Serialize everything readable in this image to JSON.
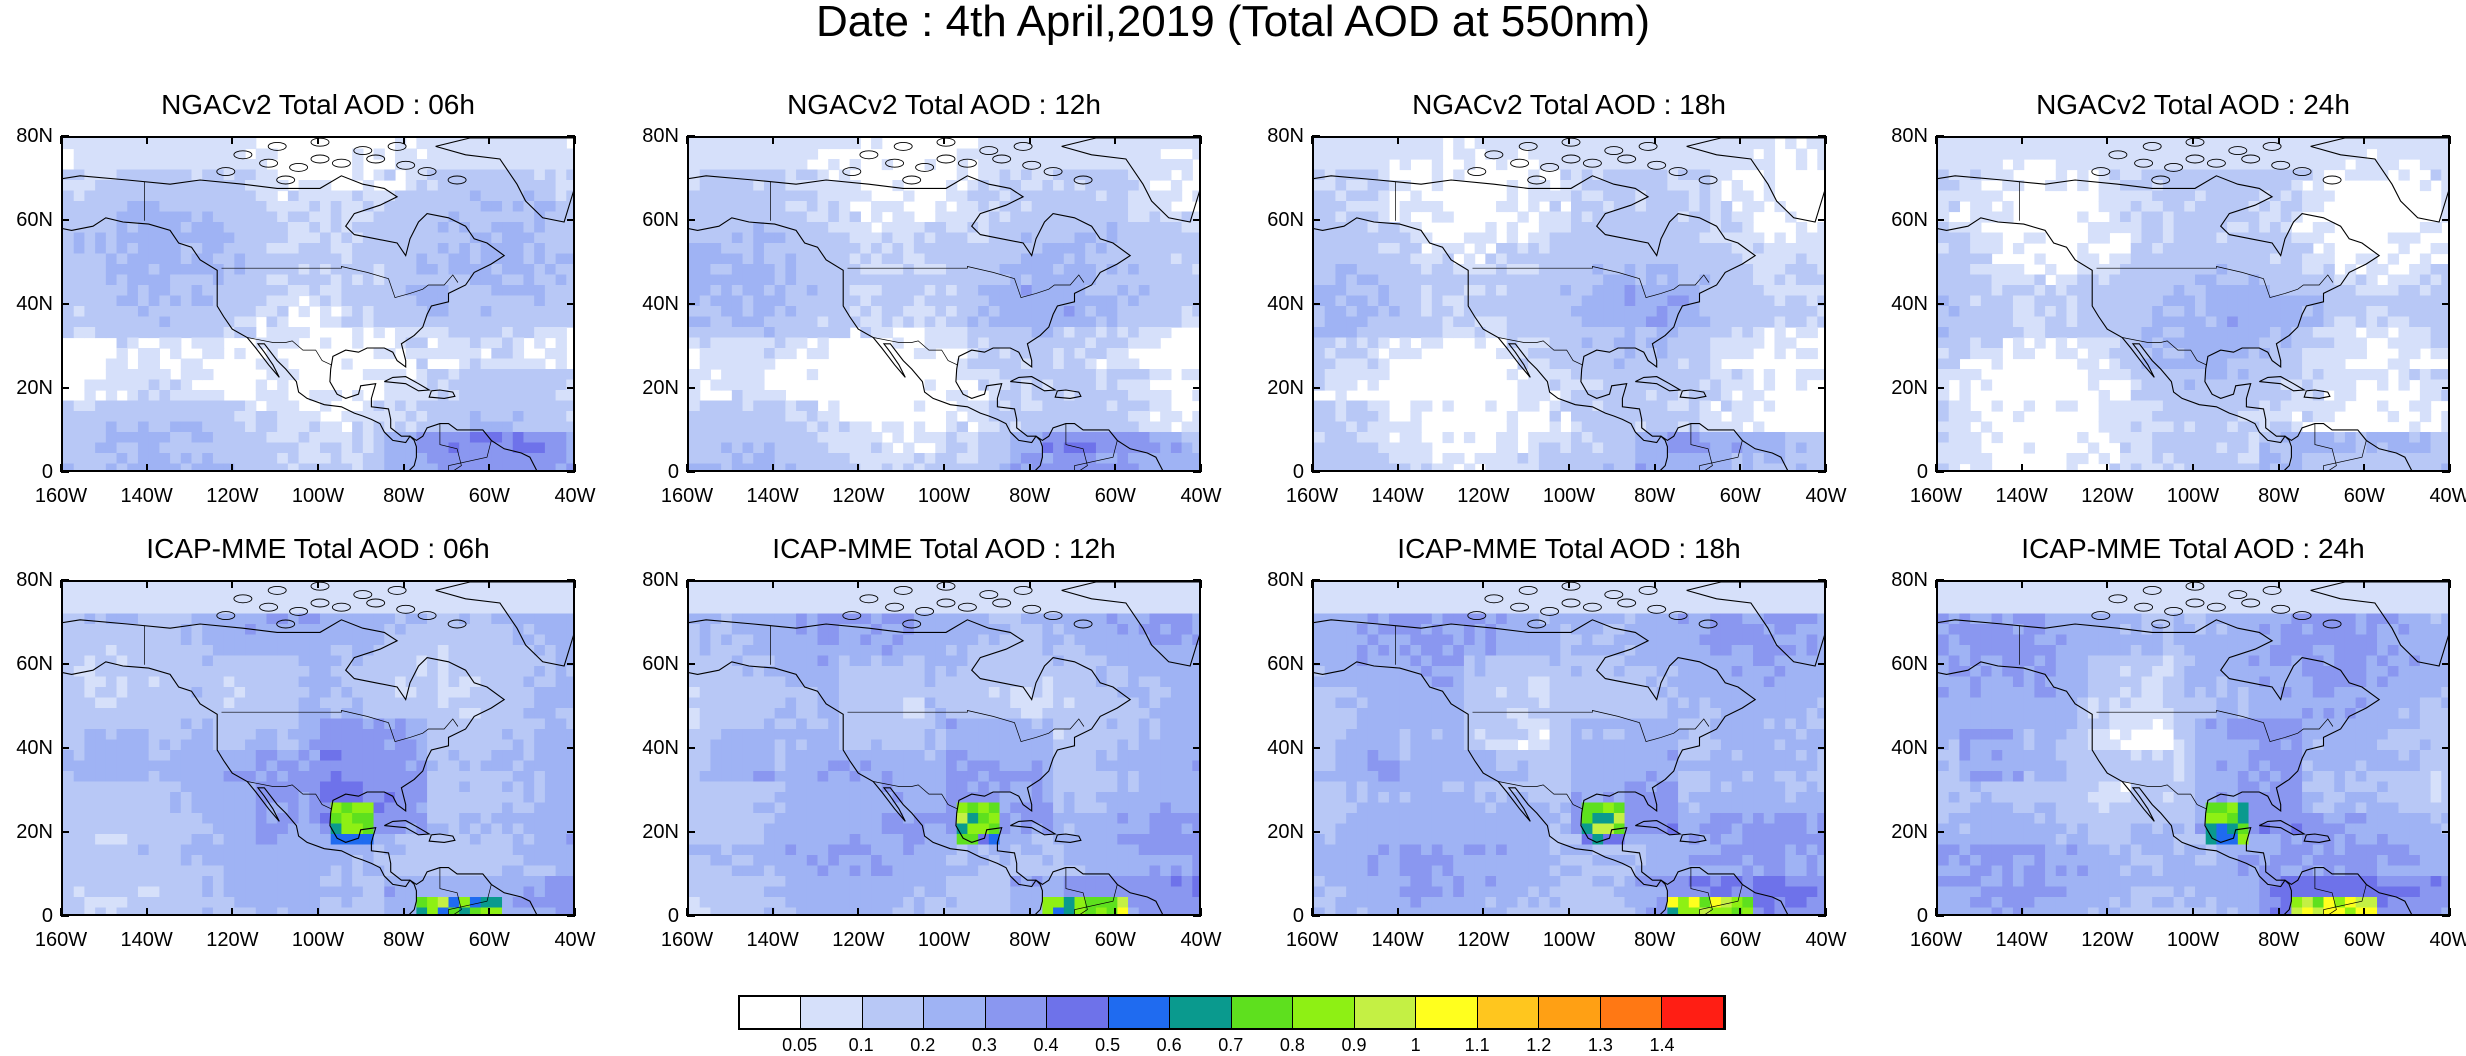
{
  "figure": {
    "title": "Date : 4th April,2019 (Total AOD at 550nm)"
  },
  "axes": {
    "y_ticks": [
      "80N",
      "60N",
      "40N",
      "20N",
      "0"
    ],
    "x_ticks": [
      "160W",
      "140W",
      "120W",
      "100W",
      "80W",
      "60W",
      "40W"
    ],
    "lon_range": [
      -160,
      -40
    ],
    "lat_range": [
      0,
      80
    ]
  },
  "panels": [
    {
      "title": "NGACv2 Total AOD : 06h"
    },
    {
      "title": "NGACv2 Total AOD : 12h"
    },
    {
      "title": "NGACv2 Total AOD : 18h"
    },
    {
      "title": "NGACv2 Total AOD : 24h"
    },
    {
      "title": "ICAP-MME Total AOD : 06h"
    },
    {
      "title": "ICAP-MME Total AOD : 12h"
    },
    {
      "title": "ICAP-MME Total AOD : 18h"
    },
    {
      "title": "ICAP-MME Total AOD : 24h"
    }
  ],
  "colorbar": {
    "labels": [
      "0.05",
      "0.1",
      "0.2",
      "0.3",
      "0.4",
      "0.5",
      "0.6",
      "0.7",
      "0.8",
      "0.9",
      "1",
      "1.1",
      "1.2",
      "1.3",
      "1.4"
    ],
    "colors": [
      "#ffffff",
      "#d6e0fa",
      "#b8c8f6",
      "#9fb3f4",
      "#8a97f0",
      "#6e72ea",
      "#1f6bf0",
      "#0a9a8e",
      "#5ee01e",
      "#8ef014",
      "#c4f044",
      "#ffff1e",
      "#ffc61e",
      "#ffa014",
      "#ff7814",
      "#ff1e14"
    ]
  }
}
